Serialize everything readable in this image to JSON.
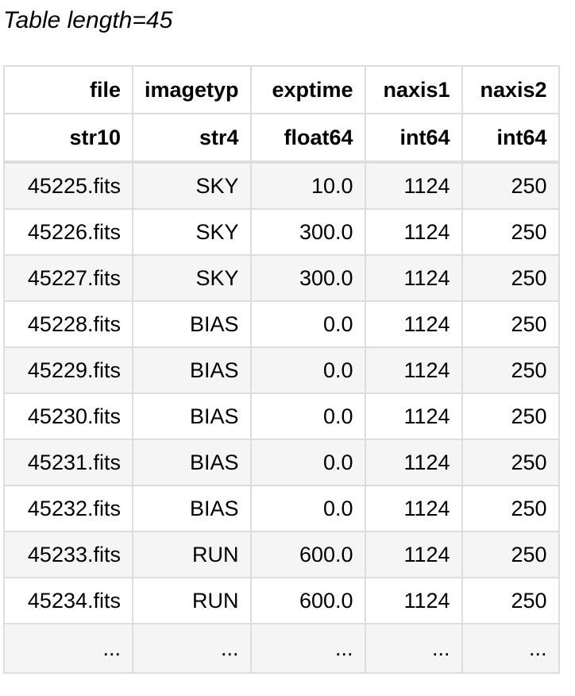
{
  "caption": "Table length=45",
  "table": {
    "columns": [
      "file",
      "imagetyp",
      "exptime",
      "naxis1",
      "naxis2"
    ],
    "dtypes": [
      "str10",
      "str4",
      "float64",
      "int64",
      "int64"
    ],
    "rows": [
      [
        "45225.fits",
        "SKY",
        "10.0",
        "1124",
        "250"
      ],
      [
        "45226.fits",
        "SKY",
        "300.0",
        "1124",
        "250"
      ],
      [
        "45227.fits",
        "SKY",
        "300.0",
        "1124",
        "250"
      ],
      [
        "45228.fits",
        "BIAS",
        "0.0",
        "1124",
        "250"
      ],
      [
        "45229.fits",
        "BIAS",
        "0.0",
        "1124",
        "250"
      ],
      [
        "45230.fits",
        "BIAS",
        "0.0",
        "1124",
        "250"
      ],
      [
        "45231.fits",
        "BIAS",
        "0.0",
        "1124",
        "250"
      ],
      [
        "45232.fits",
        "BIAS",
        "0.0",
        "1124",
        "250"
      ],
      [
        "45233.fits",
        "RUN",
        "600.0",
        "1124",
        "250"
      ],
      [
        "45234.fits",
        "RUN",
        "600.0",
        "1124",
        "250"
      ]
    ],
    "ellipsis_row": [
      "...",
      "...",
      "...",
      "...",
      "..."
    ]
  }
}
